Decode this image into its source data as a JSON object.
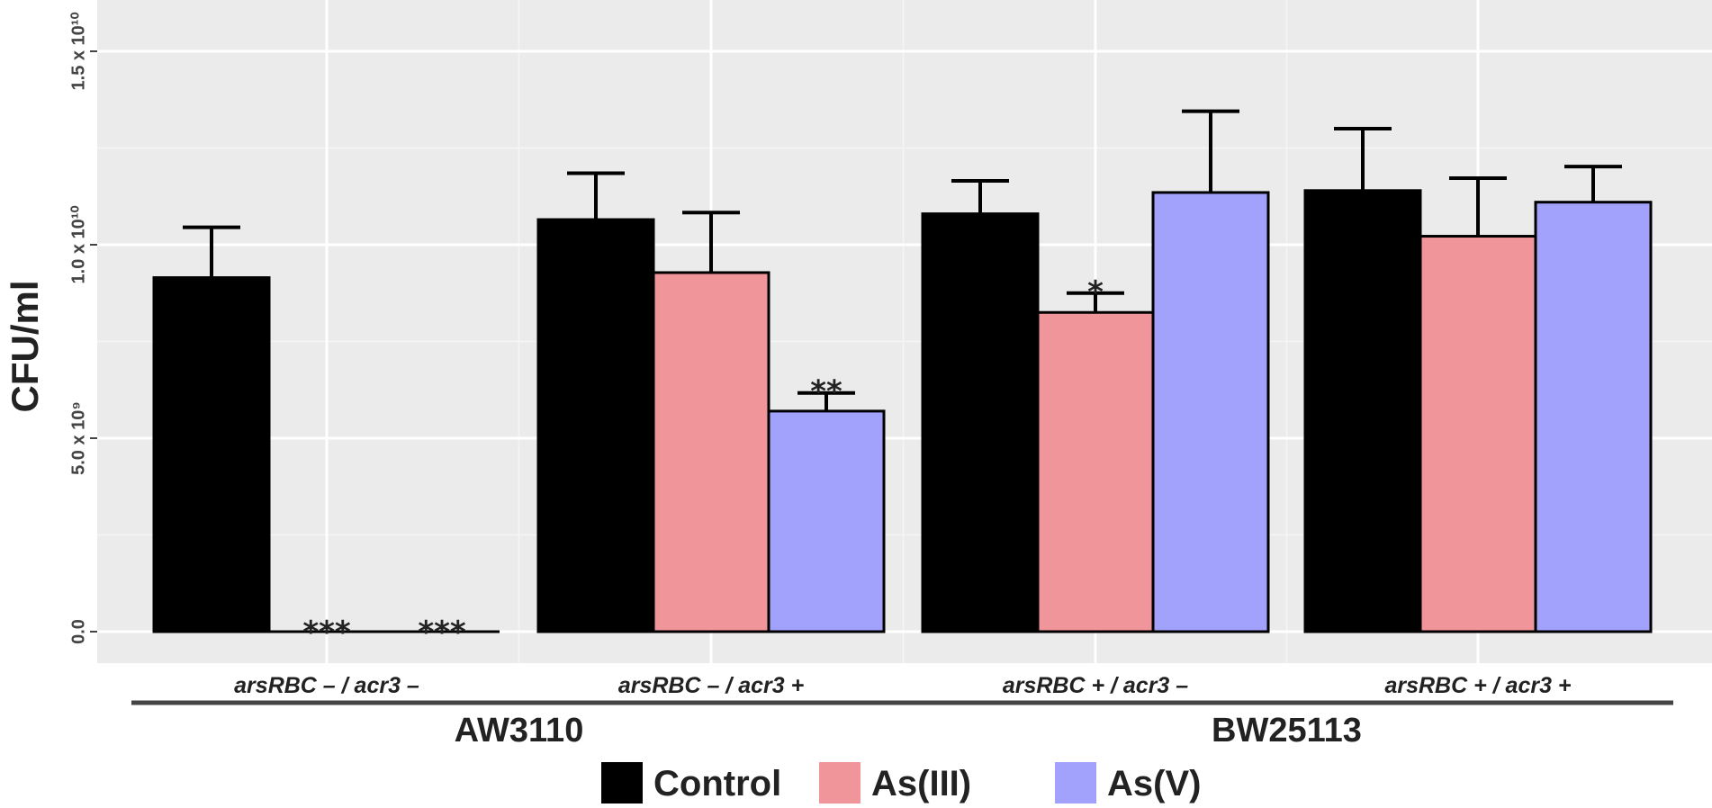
{
  "chart_data": {
    "type": "bar",
    "title": "",
    "xlabel": "",
    "ylabel": "CFU/ml",
    "ylim": [
      0,
      16000000000.0
    ],
    "yticks": [
      {
        "value": 0,
        "label": "0.0"
      },
      {
        "value": 5000000000.0,
        "label": "5.0 x 10⁹"
      },
      {
        "value": 10000000000.0,
        "label": "1.0 x 10¹⁰"
      },
      {
        "value": 15000000000.0,
        "label": "1.5 x 10¹⁰"
      }
    ],
    "categories": [
      "arsRBC – / acr3 –",
      "arsRBC – / acr3 +",
      "arsRBC + / acr3 –",
      "arsRBC + / acr3 +"
    ],
    "series": [
      {
        "name": "Control",
        "color": "#000000",
        "values": [
          9150000000.0,
          10650000000.0,
          10800000000.0,
          11400000000.0
        ],
        "errors": [
          1300000000.0,
          1200000000.0,
          850000000.0,
          1600000000.0
        ],
        "significance": [
          "",
          "",
          "",
          ""
        ]
      },
      {
        "name": "As(III)",
        "color": "#f0959a",
        "values": [
          0,
          9280000000.0,
          8250000000.0,
          10220000000.0
        ],
        "errors": [
          0,
          1550000000.0,
          500000000.0,
          1500000000.0
        ],
        "significance": [
          "***",
          "",
          "*",
          ""
        ]
      },
      {
        "name": "As(V)",
        "color": "#a2a2fd",
        "values": [
          0,
          5700000000.0,
          11350000000.0,
          11100000000.0
        ],
        "errors": [
          0,
          470000000.0,
          2100000000.0,
          920000000.0
        ],
        "significance": [
          "***",
          "**",
          "",
          ""
        ]
      }
    ],
    "groups": [
      {
        "label": "AW3110",
        "categories": [
          0,
          1
        ]
      },
      {
        "label": "BW25113",
        "categories": [
          2,
          3
        ]
      }
    ],
    "grid": true,
    "legend_position": "bottom"
  }
}
